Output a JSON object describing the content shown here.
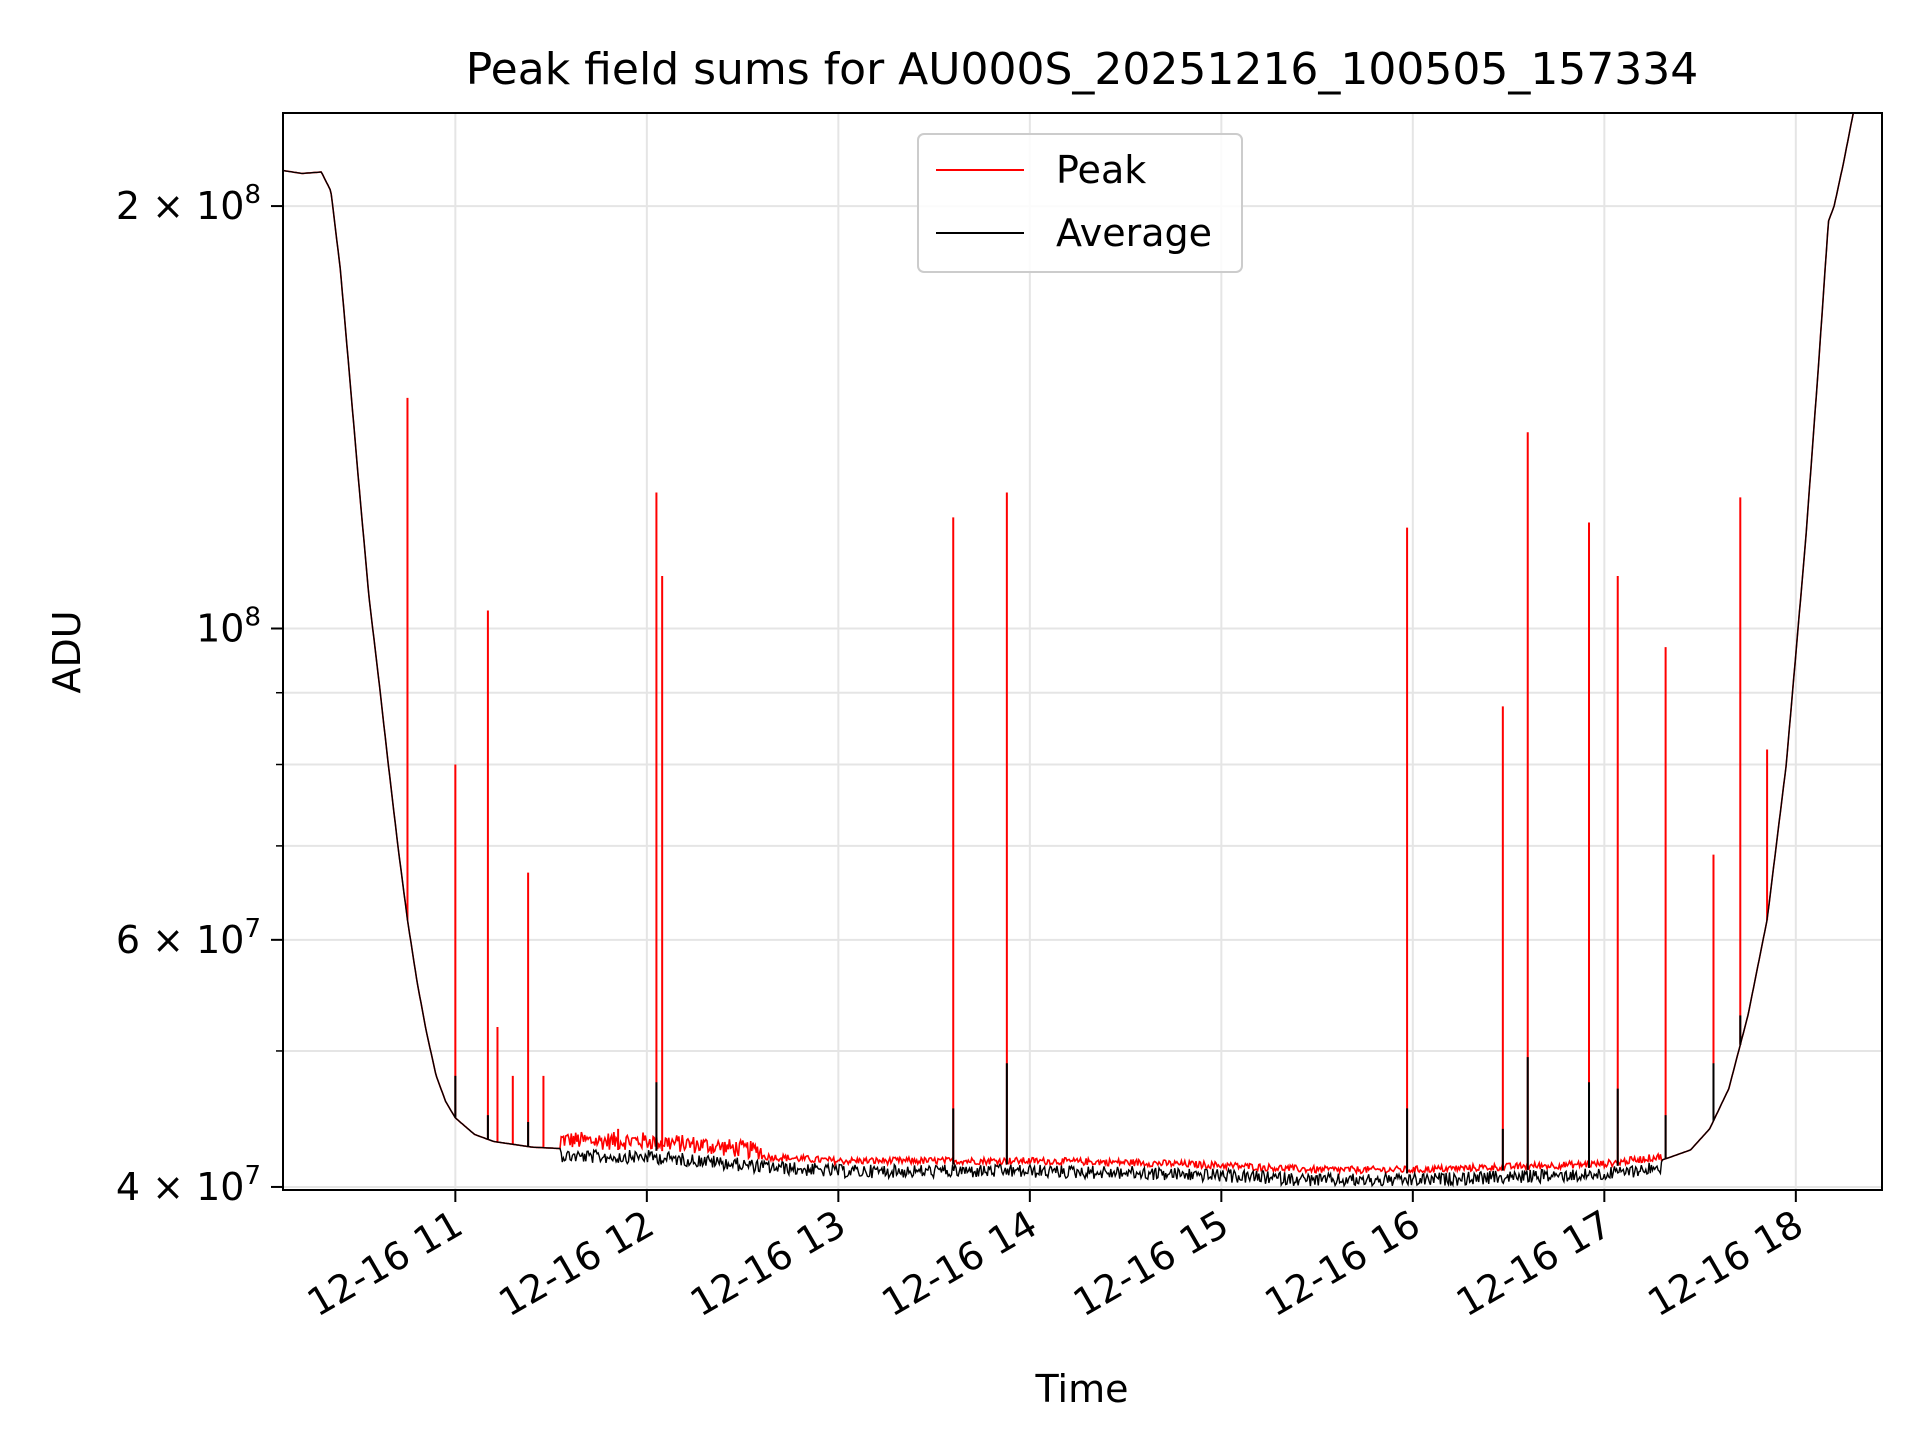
{
  "chart_data": {
    "type": "line",
    "title": "Peak field sums for AU000S_20251216_100505_157334",
    "xlabel": "Time",
    "ylabel": "ADU",
    "yscale": "log",
    "ylim": [
      39800000,
      233000000
    ],
    "xlim": [
      10.1,
      18.45
    ],
    "grid": true,
    "legend": {
      "position": "top-center",
      "entries": [
        "Peak",
        "Average"
      ]
    },
    "colors": {
      "Peak": "#ff0000",
      "Average": "#000000",
      "grid": "#e5e5e5",
      "frame": "#000000"
    },
    "x_ticks": [
      {
        "value": 11,
        "label": "12-16 11"
      },
      {
        "value": 12,
        "label": "12-16 12"
      },
      {
        "value": 13,
        "label": "12-16 13"
      },
      {
        "value": 14,
        "label": "12-16 14"
      },
      {
        "value": 15,
        "label": "12-16 15"
      },
      {
        "value": 16,
        "label": "12-16 16"
      },
      {
        "value": 17,
        "label": "12-16 17"
      },
      {
        "value": 18,
        "label": "12-16 18"
      }
    ],
    "y_ticks": [
      {
        "value": 40000000,
        "base": "4 × 10",
        "exp": "7"
      },
      {
        "value": 60000000,
        "base": "6 × 10",
        "exp": "7"
      },
      {
        "value": 100000000,
        "base": "10",
        "exp": "8"
      },
      {
        "value": 200000000,
        "base": "2 × 10",
        "exp": "8"
      }
    ],
    "y_minor_ticks": [
      50000000,
      70000000,
      80000000,
      90000000
    ],
    "baseline": [
      [
        10.1,
        212000000
      ],
      [
        10.2,
        211000000
      ],
      [
        10.3,
        211500000
      ],
      [
        10.35,
        205000000
      ],
      [
        10.4,
        180000000
      ],
      [
        10.45,
        150000000
      ],
      [
        10.5,
        125000000
      ],
      [
        10.55,
        105000000
      ],
      [
        10.6,
        92000000
      ],
      [
        10.65,
        80000000
      ],
      [
        10.7,
        70000000
      ],
      [
        10.75,
        62000000
      ],
      [
        10.8,
        56000000
      ],
      [
        10.85,
        51500000
      ],
      [
        10.9,
        48000000
      ],
      [
        10.95,
        46000000
      ],
      [
        11.0,
        44800000
      ],
      [
        11.1,
        43600000
      ],
      [
        11.2,
        43100000
      ],
      [
        11.4,
        42700000
      ],
      [
        11.7,
        42500000
      ],
      [
        12.0,
        42500000
      ],
      [
        12.3,
        42200000
      ],
      [
        12.6,
        41800000
      ],
      [
        13.0,
        41500000
      ],
      [
        13.5,
        41500000
      ],
      [
        14.0,
        41500000
      ],
      [
        14.5,
        41400000
      ],
      [
        15.0,
        41200000
      ],
      [
        15.5,
        40900000
      ],
      [
        16.0,
        40900000
      ],
      [
        16.5,
        41100000
      ],
      [
        17.0,
        41300000
      ],
      [
        17.3,
        41800000
      ],
      [
        17.45,
        42500000
      ],
      [
        17.55,
        44000000
      ],
      [
        17.65,
        47000000
      ],
      [
        17.75,
        53000000
      ],
      [
        17.85,
        62000000
      ],
      [
        17.95,
        80000000
      ],
      [
        18.05,
        115000000
      ],
      [
        18.12,
        155000000
      ],
      [
        18.17,
        195000000
      ],
      [
        18.2,
        200000000
      ],
      [
        18.25,
        215000000
      ],
      [
        18.3,
        233000000
      ]
    ],
    "peak_spikes": [
      [
        10.75,
        146000000
      ],
      [
        11.0,
        80000000
      ],
      [
        11.17,
        103000000
      ],
      [
        11.22,
        52000000
      ],
      [
        11.3,
        48000000
      ],
      [
        11.38,
        67000000
      ],
      [
        11.46,
        48000000
      ],
      [
        11.85,
        44000000
      ],
      [
        12.05,
        125000000
      ],
      [
        12.08,
        109000000
      ],
      [
        13.6,
        120000000
      ],
      [
        13.88,
        125000000
      ],
      [
        15.97,
        118000000
      ],
      [
        16.47,
        88000000
      ],
      [
        16.6,
        138000000
      ],
      [
        16.92,
        119000000
      ],
      [
        17.07,
        109000000
      ],
      [
        17.32,
        97000000
      ],
      [
        17.57,
        69000000
      ],
      [
        17.71,
        124000000
      ],
      [
        17.85,
        82000000
      ]
    ],
    "average_spikes": [
      [
        11.0,
        48000000
      ],
      [
        11.17,
        45000000
      ],
      [
        11.38,
        44500000
      ],
      [
        12.05,
        47500000
      ],
      [
        13.6,
        45500000
      ],
      [
        13.88,
        49000000
      ],
      [
        15.97,
        45500000
      ],
      [
        16.47,
        44000000
      ],
      [
        16.6,
        49500000
      ],
      [
        16.92,
        47500000
      ],
      [
        17.07,
        47000000
      ],
      [
        17.32,
        45000000
      ],
      [
        17.57,
        49000000
      ],
      [
        17.71,
        53000000
      ]
    ]
  }
}
